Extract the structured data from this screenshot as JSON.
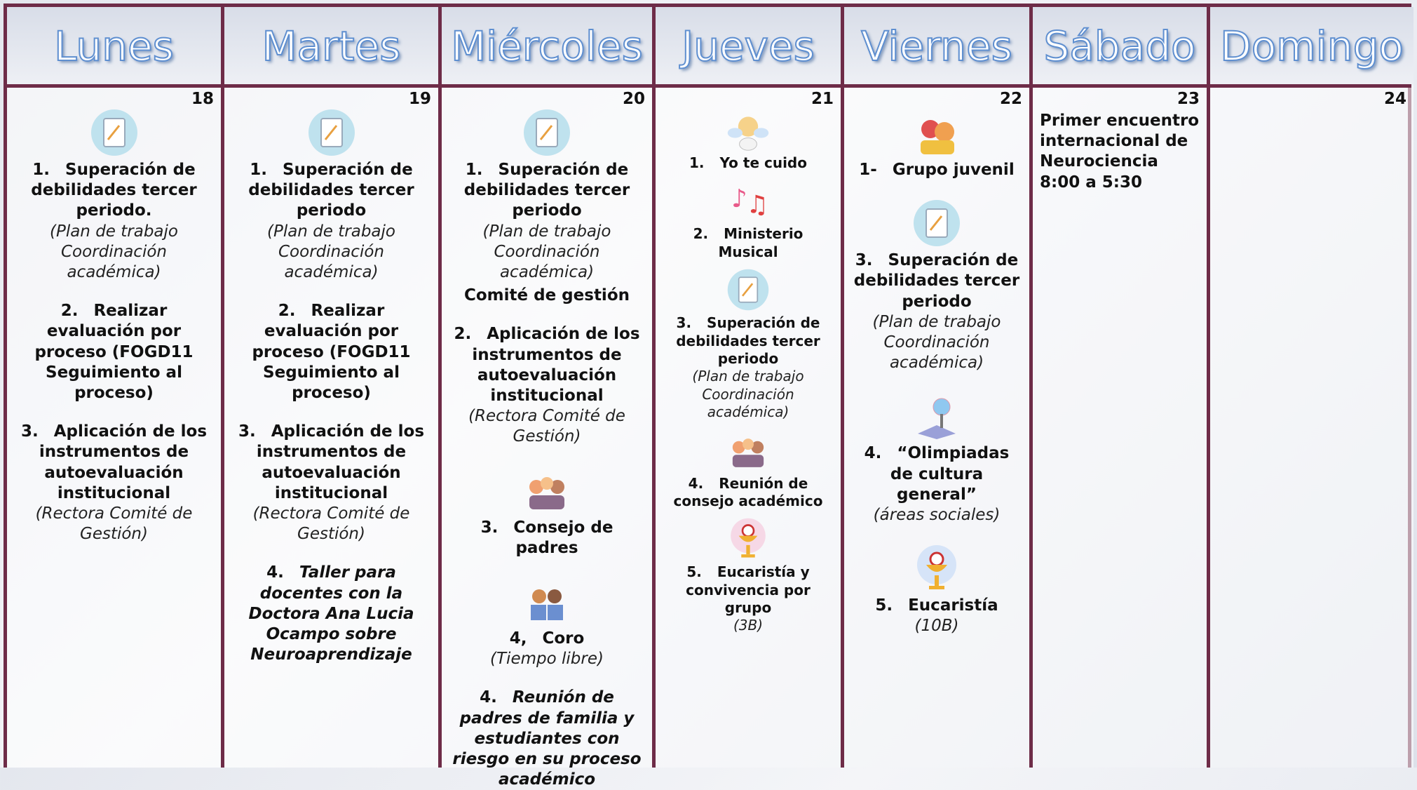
{
  "days": [
    {
      "name": "Lunes",
      "date": "18",
      "entries": [
        {
          "number": "1.",
          "title": "Superación de debilidades tercer periodo.",
          "detail": "(Plan de trabajo Coordinación académica)"
        },
        {
          "number": "2.",
          "title": "Realizar evaluación por proceso (FOGD11 Seguimiento al proceso)"
        },
        {
          "number": "3.",
          "title": "Aplicación de los instrumentos de autoevaluación institucional",
          "detail": "(Rectora Comité de Gestión)"
        }
      ]
    },
    {
      "name": "Martes",
      "date": "19",
      "entries": [
        {
          "number": "1.",
          "title": "Superación de debilidades tercer periodo",
          "detail": "(Plan de trabajo Coordinación académica)"
        },
        {
          "number": "2.",
          "title": "Realizar evaluación por proceso (FOGD11 Seguimiento al proceso)"
        },
        {
          "number": "3.",
          "title": "Aplicación de los instrumentos de autoevaluación institucional",
          "detail": "(Rectora Comité de Gestión)"
        },
        {
          "number": "4.",
          "title": "Taller para docentes con la Doctora Ana Lucia Ocampo sobre Neuroaprendizaje"
        }
      ]
    },
    {
      "name": "Miércoles",
      "date": "20",
      "entries": [
        {
          "number": "1.",
          "title": "Superación de debilidades tercer periodo",
          "detail": "(Plan de trabajo Coordinación académica)",
          "note": "Comité de gestión"
        },
        {
          "number": "2.",
          "title": "Aplicación de los instrumentos de autoevaluación institucional",
          "detail": "(Rectora Comité de Gestión)"
        },
        {
          "number": "3.",
          "title": "Consejo de padres"
        },
        {
          "number": "4,",
          "title": "Coro",
          "detail": "(Tiempo libre)"
        },
        {
          "number": "4.",
          "title": "Reunión de padres de familia y estudiantes con riesgo en su proceso académico"
        }
      ]
    },
    {
      "name": "Jueves",
      "date": "21",
      "entries": [
        {
          "number": "1.",
          "title": "Yo te cuido"
        },
        {
          "number": "2.",
          "title": "Ministerio Musical"
        },
        {
          "number": "3.",
          "title": "Superación de debilidades tercer periodo",
          "detail": "(Plan de trabajo Coordinación académica)"
        },
        {
          "number": "4.",
          "title": "Reunión de consejo académico"
        },
        {
          "number": "5.",
          "title": "Eucaristía y convivencia por grupo",
          "detail": "(3B)"
        }
      ]
    },
    {
      "name": "Viernes",
      "date": "22",
      "entries": [
        {
          "number": "1-",
          "title": "Grupo juvenil"
        },
        {
          "number": "3.",
          "title": "Superación de debilidades tercer periodo",
          "detail": "(Plan de trabajo Coordinación académica)"
        },
        {
          "number": "4.",
          "title": "“Olimpiadas de cultura general”",
          "detail": "(áreas sociales)"
        },
        {
          "number": "5.",
          "title": "Eucaristía",
          "detail": "(10B)"
        }
      ]
    },
    {
      "name": "Sábado",
      "date": "23",
      "entries": [
        {
          "title": "Primer encuentro internacional de Neurociencia",
          "time": "8:00 a 5:30"
        }
      ]
    },
    {
      "name": "Domingo",
      "date": "24",
      "entries": []
    }
  ]
}
